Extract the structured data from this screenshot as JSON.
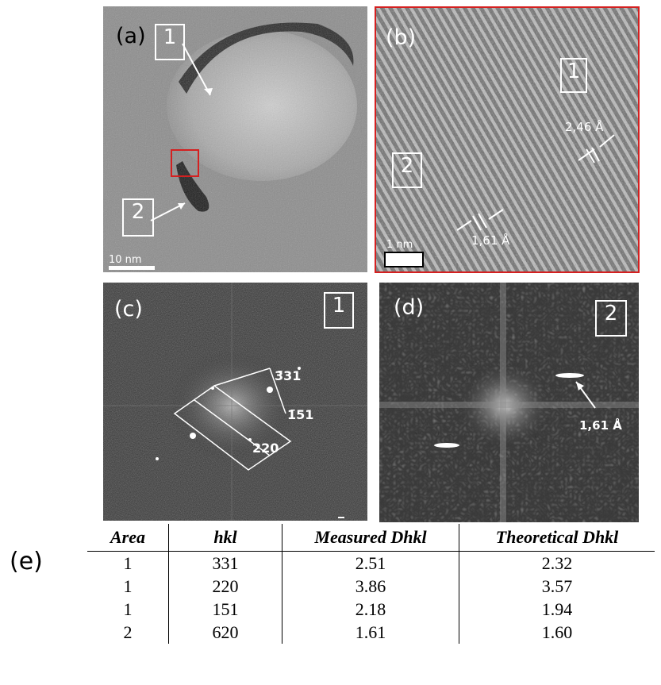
{
  "panels": {
    "a": {
      "label": "(a)",
      "area_1": "1",
      "area_2": "2",
      "scale_bar": "10 nm"
    },
    "b": {
      "label": "(b)",
      "area_1": "1",
      "area_2": "2",
      "scale_bar": "1 nm",
      "spacing_1": "2,46 Å",
      "spacing_2": "1,61 Å"
    },
    "c": {
      "label": "(c)",
      "area": "1",
      "spot_331": "3̄31",
      "spot_151": "1̄51",
      "spot_220": "220"
    },
    "d": {
      "label": "(d)",
      "area": "2",
      "spacing": "1,61 Å"
    },
    "e": {
      "label": "(e)"
    }
  },
  "colors": {
    "highlight_box": "#d42020",
    "annotation": "#ffffff"
  },
  "table": {
    "headers": [
      "Area",
      "hkl",
      "Measured Dhkl",
      "Theoretical Dhkl"
    ],
    "rows": [
      [
        "1",
        "331",
        "2.51",
        "2.32"
      ],
      [
        "1",
        "220",
        "3.86",
        "3.57"
      ],
      [
        "1",
        "151",
        "2.18",
        "1.94"
      ],
      [
        "2",
        "620",
        "1.61",
        "1.60"
      ]
    ]
  }
}
